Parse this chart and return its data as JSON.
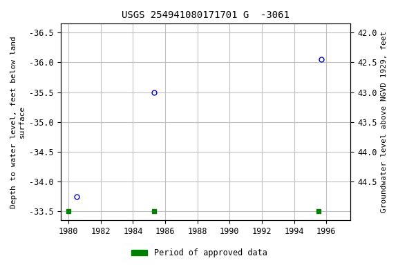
{
  "title": "USGS 254941080171701 G  -3061",
  "x_data": [
    1980.5,
    1985.3,
    1995.7
  ],
  "y_data": [
    -33.75,
    -35.5,
    -36.05
  ],
  "xlim": [
    1979.5,
    1997.5
  ],
  "ylim_left": [
    -36.65,
    -33.35
  ],
  "ylim_right": [
    41.85,
    45.15
  ],
  "xticks": [
    1980,
    1982,
    1984,
    1986,
    1988,
    1990,
    1992,
    1994,
    1996
  ],
  "yticks_left": [
    -36.5,
    -36.0,
    -35.5,
    -35.0,
    -34.5,
    -34.0,
    -33.5
  ],
  "yticks_right": [
    42.0,
    42.5,
    43.0,
    43.5,
    44.0,
    44.5
  ],
  "ylabel_left": "Depth to water level, feet below land\nsurface",
  "ylabel_right": "Groundwater level above NGVD 1929, feet",
  "marker_color": "#0000cc",
  "marker_style": "o",
  "marker_size": 5,
  "marker_facecolor": "none",
  "grid_color": "#c0c0c0",
  "bg_color": "#ffffff",
  "legend_label": "Period of approved data",
  "legend_color": "#008000",
  "approved_data_x": [
    1980.0,
    1985.3,
    1995.5
  ],
  "title_fontsize": 10,
  "axis_label_fontsize": 8,
  "tick_fontsize": 8.5
}
